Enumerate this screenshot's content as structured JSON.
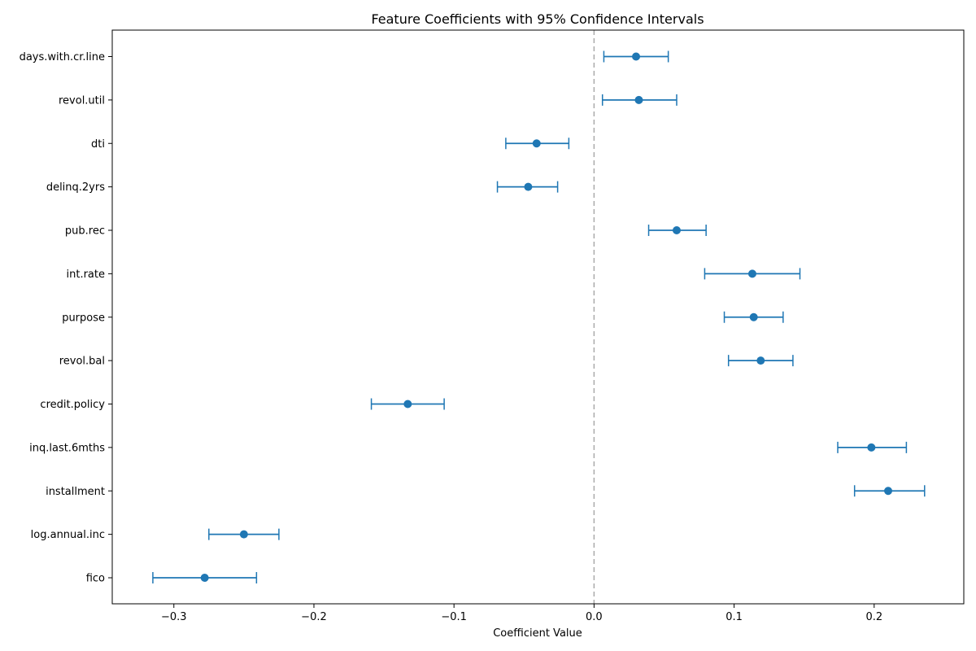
{
  "chart_data": {
    "type": "scatter",
    "title": "Feature Coefficients with 95% Confidence Intervals",
    "xlabel": "Coefficient Value",
    "ylabel": "",
    "xlim": [
      -0.344,
      0.264
    ],
    "xticks": [
      -0.3,
      -0.2,
      -0.1,
      0.0,
      0.1,
      0.2
    ],
    "xtick_labels": [
      "−0.3",
      "−0.2",
      "−0.1",
      "0.0",
      "0.1",
      "0.2"
    ],
    "reference_line": {
      "x": 0.0,
      "style": "dashed",
      "color": "#aaaaaa"
    },
    "grid": false,
    "legend": "none",
    "series_color": "#1f77b4",
    "features": [
      {
        "name": "days.with.cr.line",
        "coef": 0.03,
        "ci": [
          0.007,
          0.053
        ]
      },
      {
        "name": "revol.util",
        "coef": 0.032,
        "ci": [
          0.006,
          0.059
        ]
      },
      {
        "name": "dti",
        "coef": -0.041,
        "ci": [
          -0.063,
          -0.018
        ]
      },
      {
        "name": "delinq.2yrs",
        "coef": -0.047,
        "ci": [
          -0.069,
          -0.026
        ]
      },
      {
        "name": "pub.rec",
        "coef": 0.059,
        "ci": [
          0.039,
          0.08
        ]
      },
      {
        "name": "int.rate",
        "coef": 0.113,
        "ci": [
          0.079,
          0.147
        ]
      },
      {
        "name": "purpose",
        "coef": 0.114,
        "ci": [
          0.093,
          0.135
        ]
      },
      {
        "name": "revol.bal",
        "coef": 0.119,
        "ci": [
          0.096,
          0.142
        ]
      },
      {
        "name": "credit.policy",
        "coef": -0.133,
        "ci": [
          -0.159,
          -0.107
        ]
      },
      {
        "name": "inq.last.6mths",
        "coef": 0.198,
        "ci": [
          0.174,
          0.223
        ]
      },
      {
        "name": "installment",
        "coef": 0.21,
        "ci": [
          0.186,
          0.236
        ]
      },
      {
        "name": "log.annual.inc",
        "coef": -0.25,
        "ci": [
          -0.275,
          -0.225
        ]
      },
      {
        "name": "fico",
        "coef": -0.278,
        "ci": [
          -0.315,
          -0.241
        ]
      }
    ]
  }
}
